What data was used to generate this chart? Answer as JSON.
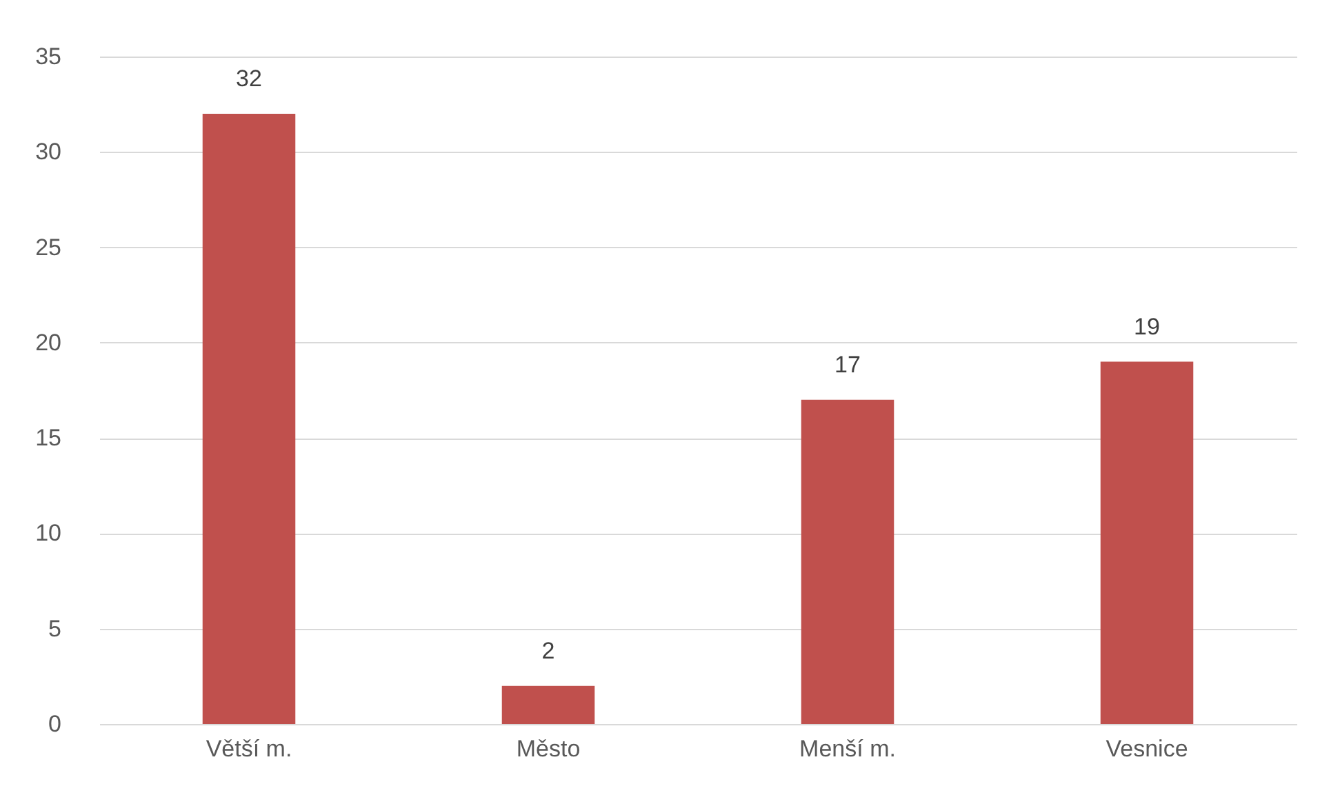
{
  "chart_data": {
    "type": "bar",
    "categories": [
      "Větší m.",
      "Město",
      "Menší m.",
      "Vesnice"
    ],
    "values": [
      32,
      2,
      17,
      19
    ],
    "color": "#c0504d",
    "ylim": [
      0,
      35
    ],
    "yticks": [
      0,
      5,
      10,
      15,
      20,
      25,
      30,
      35
    ],
    "grid": "y",
    "data_labels": true
  }
}
